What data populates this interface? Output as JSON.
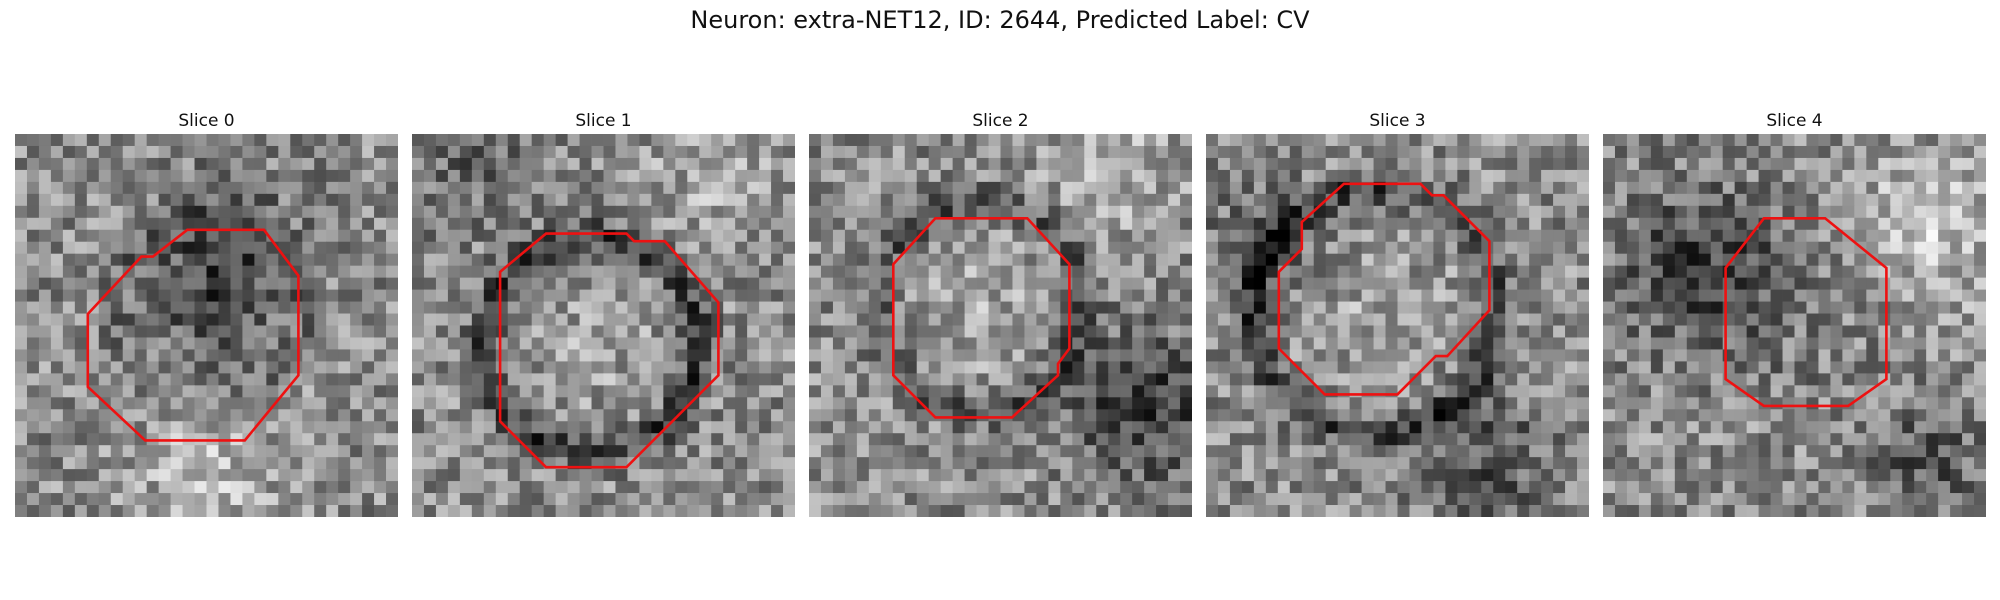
{
  "figure": {
    "title": "Neuron: extra-NET12, ID: 2644, Predicted Label: CV"
  },
  "roi_color": "#ee1111",
  "panels": [
    {
      "title": "Slice 0"
    },
    {
      "title": "Slice 1"
    },
    {
      "title": "Slice 2"
    },
    {
      "title": "Slice 3"
    },
    {
      "title": "Slice 4"
    }
  ]
}
